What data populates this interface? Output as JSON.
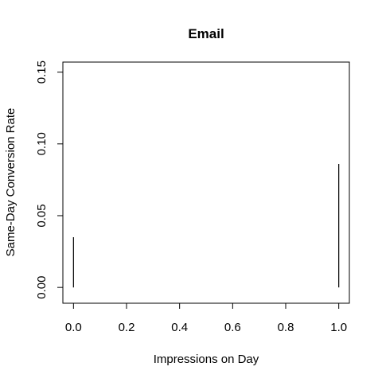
{
  "chart_data": {
    "type": "bar",
    "title": "Email",
    "xlabel": "Impressions on Day",
    "ylabel": "Same-Day Conversion Rate",
    "xlim": [
      -0.04,
      1.04
    ],
    "ylim": [
      -0.011,
      0.157
    ],
    "x_ticks": [
      "0.0",
      "0.2",
      "0.4",
      "0.6",
      "0.8",
      "1.0"
    ],
    "y_ticks": [
      "0.00",
      "0.05",
      "0.10",
      "0.15"
    ],
    "x": [
      0.0,
      1.0
    ],
    "values": [
      0.035,
      0.086
    ],
    "grid": false,
    "bar_color": "#000000"
  }
}
